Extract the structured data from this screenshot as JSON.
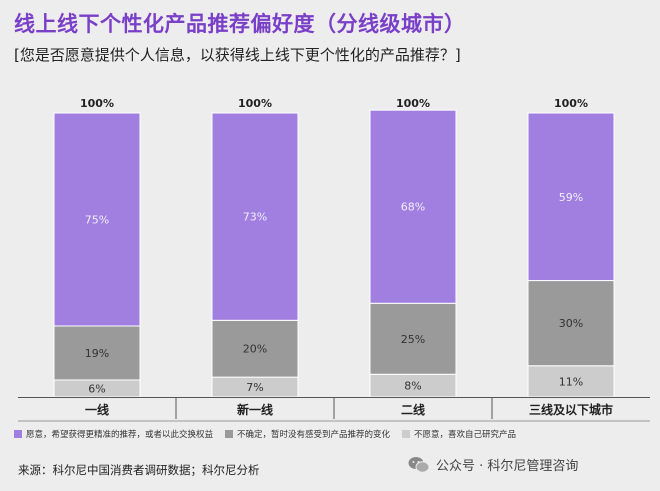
{
  "title": "线上线下个性化产品推荐偏好度（分线级城市）",
  "subtitle": "[您是否愿意提供个人信息，以获得线上线下更个性化的产品推荐？]",
  "source": "来源：科尔尼中国消费者调研数据；科尔尼分析",
  "watermark": {
    "text": "公众号 · 科尔尼管理咨询",
    "icon": "wechat-icon"
  },
  "colors": {
    "willing": "#a07fe0",
    "unsure": "#9a9a9a",
    "unwilling": "#cccccc"
  },
  "chart_data": {
    "type": "bar",
    "stacked": true,
    "categories": [
      "一线",
      "新一线",
      "二线",
      "三线及以下城市"
    ],
    "totals": [
      "100%",
      "100%",
      "100%",
      "100%"
    ],
    "series": [
      {
        "name": "不愿意，喜欢自己研究产品",
        "values": [
          6,
          7,
          8,
          11
        ],
        "color": "#cccccc"
      },
      {
        "name": "不确定，暂时没有感受到产品推荐的变化",
        "values": [
          19,
          20,
          25,
          30
        ],
        "color": "#9a9a9a"
      },
      {
        "name": "愿意，希望获得更精准的推荐，或者以此交换权益",
        "values": [
          75,
          73,
          68,
          59
        ],
        "color": "#a07fe0"
      }
    ],
    "ylim": [
      0,
      100
    ],
    "unit": "%",
    "legend_order": [
      2,
      1,
      0
    ],
    "legend_position": "bottom"
  }
}
